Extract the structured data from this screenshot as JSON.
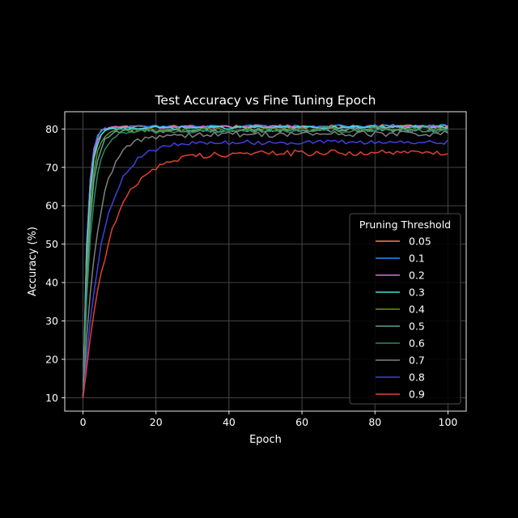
{
  "chart_data": {
    "type": "line",
    "title": "Test Accuracy vs Fine Tuning Epoch",
    "xlabel": "Epoch",
    "ylabel": "Accuracy (%)",
    "xlim": [
      -5,
      105
    ],
    "ylim": [
      6.5,
      84.5
    ],
    "xticks": [
      0,
      20,
      40,
      60,
      80,
      100
    ],
    "yticks": [
      10,
      20,
      30,
      40,
      50,
      60,
      70,
      80
    ],
    "grid": true,
    "legend": {
      "title": "Pruning Threshold",
      "position": "center-right"
    },
    "series": [
      {
        "name": "0.05",
        "color": "#ff7f50",
        "start": 10,
        "plateau": 80.8,
        "tau": 1.2,
        "slope": 0.009,
        "noise": 0.4
      },
      {
        "name": "0.1",
        "color": "#1e90ff",
        "start": 10,
        "plateau": 80.8,
        "tau": 1.2,
        "slope": 0.01,
        "noise": 0.4
      },
      {
        "name": "0.2",
        "color": "#da70d6",
        "start": 10,
        "plateau": 80.6,
        "tau": 1.3,
        "slope": 0.009,
        "noise": 0.4
      },
      {
        "name": "0.3",
        "color": "#40e0d0",
        "start": 10,
        "plateau": 80.5,
        "tau": 1.4,
        "slope": 0.009,
        "noise": 0.4
      },
      {
        "name": "0.4",
        "color": "#6b8e23",
        "start": 10,
        "plateau": 80.0,
        "tau": 1.6,
        "slope": 0.01,
        "noise": 0.6
      },
      {
        "name": "0.5",
        "color": "#5f9ea0",
        "start": 10,
        "plateau": 79.8,
        "tau": 1.8,
        "slope": 0.011,
        "noise": 0.5
      },
      {
        "name": "0.6",
        "color": "#2e8b57",
        "start": 10,
        "plateau": 79.6,
        "tau": 2.2,
        "slope": 0.011,
        "noise": 0.5
      },
      {
        "name": "0.7",
        "color": "#808080",
        "start": 10,
        "plateau": 78.8,
        "tau": 4.0,
        "slope": 0.01,
        "noise": 0.8
      },
      {
        "name": "0.8",
        "color": "#4040e0",
        "start": 10,
        "plateau": 76.6,
        "tau": 5.5,
        "slope": 0.005,
        "noise": 0.6
      },
      {
        "name": "0.9",
        "color": "#e04030",
        "start": 10,
        "plateau": 73.8,
        "tau": 7.0,
        "slope": 0.004,
        "noise": 0.8
      }
    ],
    "epochs": 101
  }
}
